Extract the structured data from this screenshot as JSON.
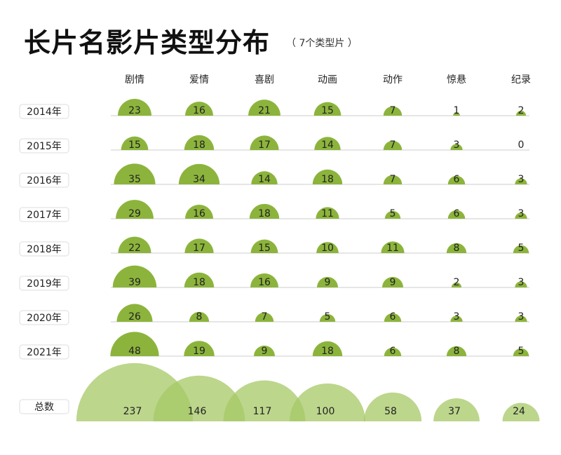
{
  "title": "长片名影片类型分布",
  "subtitle": "（ 7个类型片 ）",
  "colors": {
    "bubble": "#8cb43c",
    "total_bubble": "#a6c866",
    "baseline": "#cccccc",
    "label_border": "#dddddd",
    "text": "#222222"
  },
  "chart_data": {
    "type": "bubble-matrix",
    "categories": [
      "剧情",
      "爱情",
      "喜剧",
      "动画",
      "动作",
      "惊悬",
      "纪录"
    ],
    "rows": [
      {
        "label": "2014年",
        "values": [
          23,
          16,
          21,
          15,
          7,
          1,
          2
        ]
      },
      {
        "label": "2015年",
        "values": [
          15,
          18,
          17,
          14,
          7,
          3,
          0
        ]
      },
      {
        "label": "2016年",
        "values": [
          35,
          34,
          14,
          18,
          7,
          6,
          3
        ]
      },
      {
        "label": "2017年",
        "values": [
          29,
          16,
          18,
          11,
          5,
          6,
          3
        ]
      },
      {
        "label": "2018年",
        "values": [
          22,
          17,
          15,
          10,
          11,
          8,
          5
        ]
      },
      {
        "label": "2019年",
        "values": [
          39,
          18,
          16,
          9,
          9,
          2,
          3
        ]
      },
      {
        "label": "2020年",
        "values": [
          26,
          8,
          7,
          5,
          6,
          3,
          3
        ]
      },
      {
        "label": "2021年",
        "values": [
          48,
          19,
          9,
          18,
          6,
          8,
          5
        ]
      }
    ],
    "totals": {
      "label": "总数",
      "values": [
        237,
        146,
        117,
        100,
        58,
        37,
        24
      ]
    }
  }
}
